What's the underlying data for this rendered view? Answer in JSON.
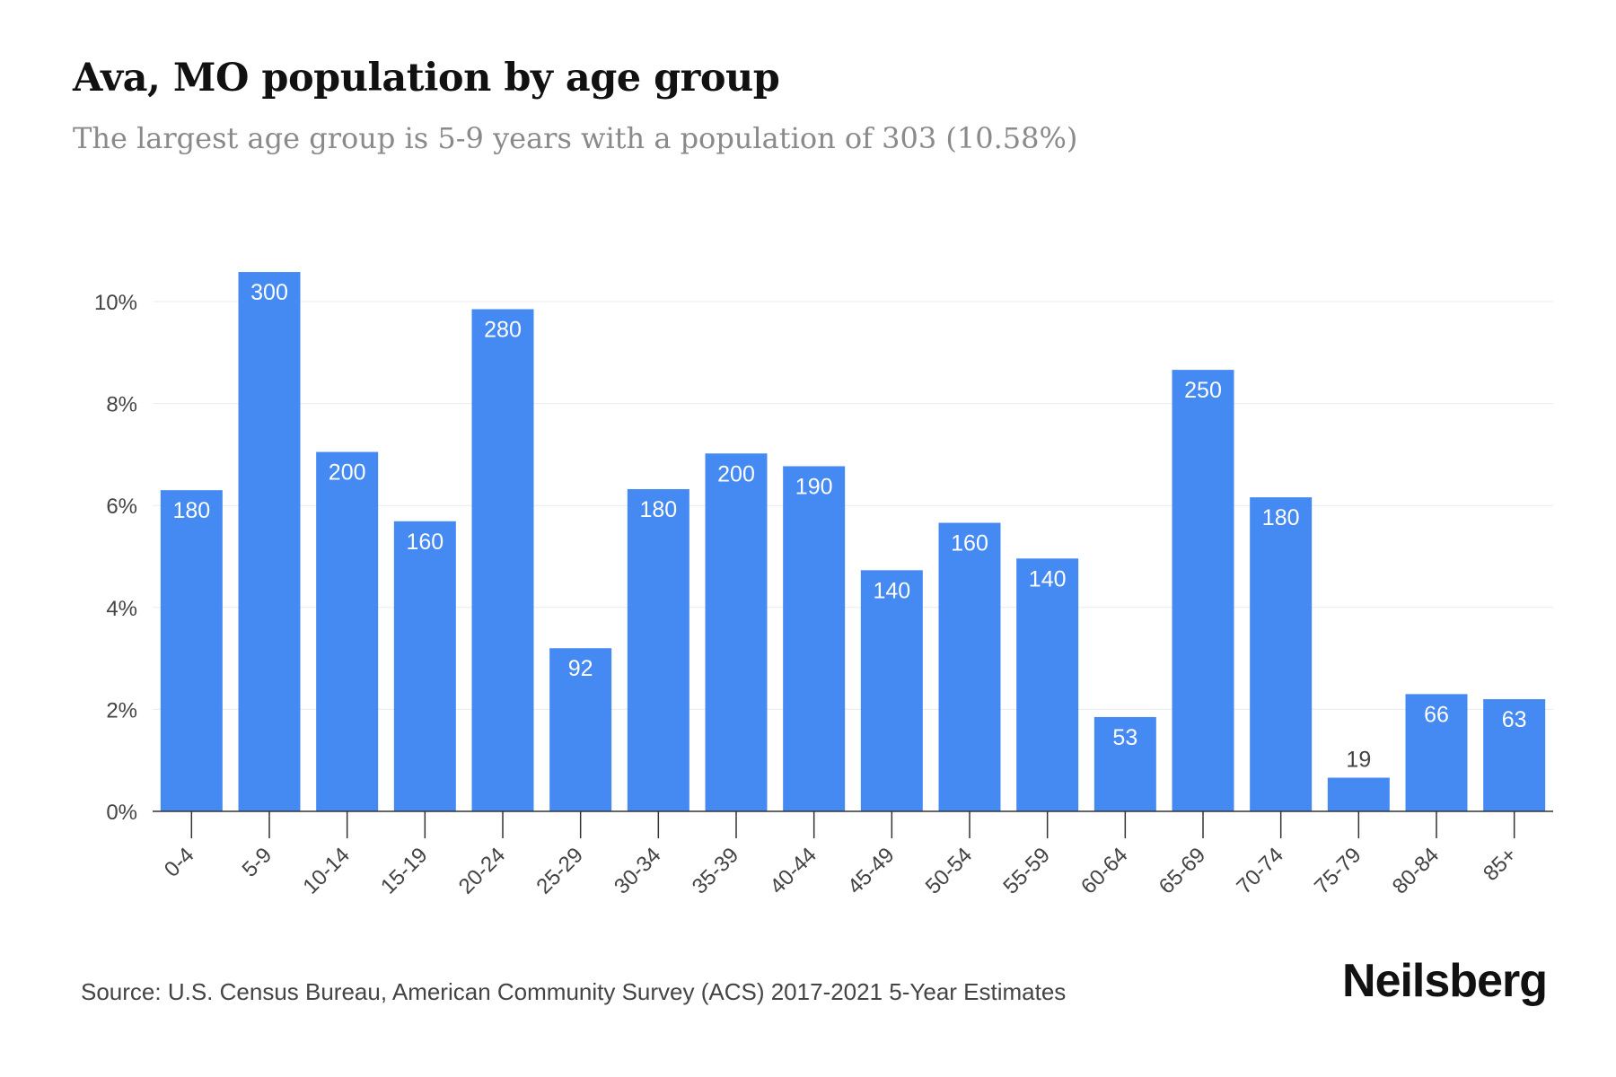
{
  "title": "Ava, MO population by age group",
  "subtitle": "The largest age group is 5-9 years with a population of 303 (10.58%)",
  "source": "Source: U.S. Census Bureau, American Community Survey (ACS) 2017-2021 5-Year Estimates",
  "brand": "Neilsberg",
  "colors": {
    "bar": "#4589f3",
    "grid": "#ececec",
    "axis": "#333333",
    "tick_label": "#444444",
    "bar_label_inside": "#ffffff",
    "bar_label_outside": "#444444"
  },
  "chart_data": {
    "type": "bar",
    "categories": [
      "0-4",
      "5-9",
      "10-14",
      "15-19",
      "20-24",
      "25-29",
      "30-34",
      "35-39",
      "40-44",
      "45-49",
      "50-54",
      "55-59",
      "60-64",
      "65-69",
      "70-74",
      "75-79",
      "80-84",
      "85+"
    ],
    "values": [
      6.3,
      10.58,
      7.05,
      5.69,
      9.85,
      3.2,
      6.32,
      7.02,
      6.77,
      4.73,
      5.66,
      4.96,
      1.85,
      8.66,
      6.16,
      0.66,
      2.3,
      2.2
    ],
    "data_labels": [
      "180",
      "300",
      "200",
      "160",
      "280",
      "92",
      "180",
      "200",
      "190",
      "140",
      "160",
      "140",
      "53",
      "250",
      "180",
      "19",
      "66",
      "63"
    ],
    "yticks": [
      "0%",
      "2%",
      "4%",
      "6%",
      "8%",
      "10%"
    ],
    "ylim": [
      0,
      12
    ],
    "grid": true,
    "xlabel": "",
    "ylabel": ""
  }
}
